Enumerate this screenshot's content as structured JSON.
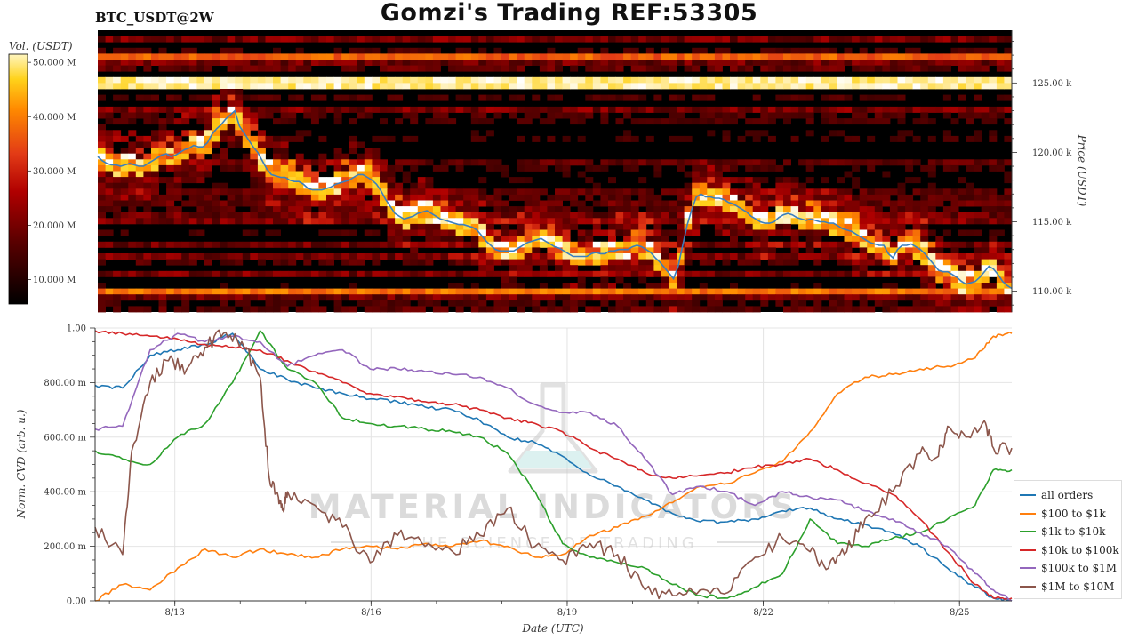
{
  "header": {
    "title": "Gomzi's Trading REF:53305",
    "symbol": "BTC_USDT@2W"
  },
  "watermark": {
    "line1": "MATERIAL INDICATORS",
    "line2": "THE SCIENCE OF TRADING"
  },
  "colorbar": {
    "label": "Vol. (USDT)",
    "ticks": [
      "50.000 M",
      "40.000 M",
      "30.000 M",
      "20.000 M",
      "10.000 M"
    ],
    "tick_values": [
      50,
      40,
      30,
      20,
      10
    ],
    "range": [
      5.5,
      51.5
    ]
  },
  "chart_data": [
    {
      "type": "heatmap",
      "title": "",
      "ylabel": "Price (USDT)",
      "ylim": [
        108500,
        128800
      ],
      "y_ticks": [
        110000,
        115000,
        120000,
        125000
      ],
      "y_tick_labels": [
        "110.00 k",
        "115.00 k",
        "120.00 k",
        "125.00 k"
      ],
      "colorscale": [
        "#000000",
        "#5a0000",
        "#b00000",
        "#e23a16",
        "#ff8a00",
        "#ffd21a",
        "#ffffff"
      ],
      "persistent_bands": [
        {
          "price": 125000,
          "intensity": 0.95
        },
        {
          "price": 127000,
          "intensity": 0.6
        },
        {
          "price": 109900,
          "intensity": 0.65
        }
      ],
      "series": [
        {
          "name": "price",
          "color": "#3a7fbf",
          "t": [
            0,
            0.5,
            1,
            1.5,
            2,
            2.5,
            3,
            3.5,
            4,
            4.5,
            5,
            5.5,
            6,
            6.5,
            7,
            7.5,
            8,
            8.5,
            9,
            9.5,
            10,
            10.5,
            11,
            11.5,
            12,
            12.5,
            13,
            13.5,
            14,
            14.5,
            15,
            15.5,
            16,
            16.5,
            17,
            17.5,
            18,
            18.5,
            19,
            19.5,
            20,
            20.5,
            21,
            21.5,
            22,
            22.5,
            23,
            23.5,
            24,
            24.5,
            25,
            25.5,
            26,
            26.5,
            27,
            27.5,
            28,
            28.5,
            29,
            29.5,
            30,
            30.5,
            31,
            31.5,
            32,
            32.5,
            33,
            33.5,
            34,
            34.5,
            35,
            35.5,
            36,
            36.5,
            37,
            37.5,
            38,
            38.5,
            39,
            39.5,
            40,
            40.5,
            41,
            41.5,
            42,
            42.5,
            43,
            43.5,
            44,
            44.5,
            45,
            45.5,
            46,
            46.5,
            47,
            47.5,
            48,
            48.5,
            49,
            49.5,
            50,
            50.5,
            51,
            51.5,
            52,
            52.5,
            53,
            53.5,
            54,
            54.5,
            55,
            55.5,
            56,
            56.5,
            57,
            57.5,
            58,
            58.5,
            59,
            59.5,
            60,
            60.5,
            61,
            61.5,
            62,
            62.5,
            63,
            63.5,
            64,
            64.5,
            65,
            65.5,
            66,
            66.5,
            67,
            67.5,
            68,
            68.5,
            69,
            69.5,
            70,
            70.5,
            71,
            71.5,
            72,
            72.5,
            73,
            73.5,
            74,
            74.5,
            75,
            75.5,
            76,
            76.5,
            77,
            77.5,
            78,
            78.5,
            79,
            79.5,
            80,
            80.5,
            81,
            81.5,
            82,
            82.5,
            83,
            83.5,
            84,
            84.5,
            85,
            85.5,
            86,
            86.5,
            87,
            87.5,
            88,
            88.5,
            89,
            89.5,
            90,
            90.5,
            91,
            91.5,
            92,
            92.5,
            93,
            93.5,
            94,
            94.5,
            95,
            95.5,
            96,
            96.5,
            97,
            97.5,
            98,
            98.5,
            99,
            99.5,
            100
          ],
          "values": [
            119700,
            119400,
            119200,
            119100,
            119100,
            119000,
            119100,
            119200,
            119100,
            119000,
            119000,
            119200,
            119400,
            119600,
            119800,
            119900,
            119700,
            119800,
            120000,
            120200,
            120300,
            120500,
            120400,
            120400,
            120700,
            121300,
            121700,
            122000,
            122400,
            122700,
            123000,
            121900,
            121400,
            120900,
            120400,
            120000,
            119400,
            118800,
            118400,
            118300,
            118200,
            118200,
            118000,
            117900,
            117900,
            117700,
            117400,
            117300,
            117300,
            117300,
            117400,
            117500,
            117700,
            117800,
            117900,
            118000,
            118200,
            118400,
            118400,
            118200,
            118000,
            117700,
            117200,
            116600,
            116100,
            115600,
            115400,
            115200,
            115300,
            115400,
            115600,
            115700,
            115800,
            115600,
            115400,
            115200,
            115100,
            115000,
            114900,
            114800,
            114800,
            114700,
            114600,
            114400,
            114000,
            113600,
            113300,
            113000,
            112900,
            112900,
            112900,
            112900,
            113100,
            113300,
            113500,
            113600,
            113700,
            113800,
            113600,
            113400,
            113200,
            113100,
            112900,
            112700,
            112500,
            112500,
            112500,
            112500,
            112700,
            112800,
            112700,
            112700,
            112900,
            112900,
            113000,
            113000,
            113000,
            113200,
            113300,
            113200,
            113000,
            112800,
            112400,
            112100,
            111700,
            111300,
            110900,
            111800,
            113300,
            114800,
            115900,
            116800,
            117000,
            116800,
            116800,
            116700,
            116700,
            116600,
            116400,
            116300,
            116100,
            115900,
            115700,
            115400,
            115200,
            115000,
            114900,
            114900,
            115000,
            115300,
            115500,
            115600,
            115500,
            115300,
            115200,
            115100,
            115200,
            115100,
            115000,
            115000,
            114900,
            114900,
            114700,
            114500,
            114400,
            114300,
            114100,
            113900,
            113700,
            113500,
            113400,
            113300,
            113300,
            112700,
            112400,
            113000,
            113300,
            113300,
            113400,
            113200,
            113000,
            112700,
            112300,
            111900,
            111500,
            111400,
            111400,
            111200,
            111000,
            110700,
            110500,
            110600,
            110700,
            111000,
            111400,
            111800,
            111600,
            111200,
            110700,
            110400,
            110200
          ]
        }
      ]
    },
    {
      "type": "line",
      "title": "",
      "xlabel": "Date (UTC)",
      "ylabel": "Norm. CVD (arb. u.)",
      "ylim": [
        0,
        1
      ],
      "xlim": [
        0,
        100
      ],
      "x_ticks": [
        8.7,
        30.1,
        51.5,
        72.9,
        94.3
      ],
      "x_tick_labels": [
        "8/13",
        "8/16",
        "8/19",
        "8/22",
        "8/25"
      ],
      "y_ticks": [
        0,
        0.2,
        0.4,
        0.6,
        0.8,
        1.0
      ],
      "y_tick_labels": [
        "0.00",
        "200.00 m",
        "400.00 m",
        "600.00 m",
        "800.00 m",
        "1.00"
      ],
      "grid": true,
      "legend_position": "bottom-right",
      "series": [
        {
          "name": "all orders",
          "color": "#1f77b4",
          "x": [
            0,
            3,
            6,
            9,
            12,
            15,
            18,
            21,
            24,
            27,
            30,
            33,
            36,
            39,
            42,
            45,
            48,
            51,
            54,
            57,
            60,
            63,
            66,
            69,
            72,
            75,
            78,
            81,
            84,
            87,
            90,
            93,
            96,
            98,
            100
          ],
          "values": [
            0.79,
            0.78,
            0.9,
            0.92,
            0.94,
            0.98,
            0.85,
            0.81,
            0.78,
            0.76,
            0.74,
            0.73,
            0.71,
            0.7,
            0.66,
            0.6,
            0.58,
            0.53,
            0.46,
            0.42,
            0.37,
            0.32,
            0.29,
            0.29,
            0.3,
            0.33,
            0.34,
            0.3,
            0.28,
            0.25,
            0.2,
            0.12,
            0.05,
            0.01,
            0.0
          ]
        },
        {
          "name": "$100 to $1k",
          "color": "#ff7f0e",
          "x": [
            0,
            3,
            6,
            9,
            12,
            15,
            18,
            21,
            24,
            27,
            30,
            33,
            36,
            39,
            42,
            45,
            48,
            51,
            54,
            57,
            60,
            63,
            66,
            69,
            72,
            75,
            78,
            81,
            84,
            87,
            90,
            93,
            96,
            98,
            100
          ],
          "values": [
            0.0,
            0.06,
            0.04,
            0.12,
            0.19,
            0.16,
            0.19,
            0.17,
            0.16,
            0.19,
            0.2,
            0.19,
            0.21,
            0.2,
            0.22,
            0.2,
            0.16,
            0.17,
            0.24,
            0.27,
            0.31,
            0.36,
            0.42,
            0.43,
            0.47,
            0.51,
            0.62,
            0.76,
            0.82,
            0.83,
            0.85,
            0.86,
            0.89,
            0.97,
            0.98
          ]
        },
        {
          "name": "$1k to $10k",
          "color": "#2ca02c",
          "x": [
            0,
            3,
            6,
            9,
            12,
            15,
            18,
            21,
            24,
            27,
            30,
            33,
            36,
            39,
            42,
            45,
            48,
            51,
            54,
            57,
            60,
            63,
            66,
            69,
            72,
            75,
            78,
            81,
            84,
            87,
            90,
            93,
            96,
            98,
            100
          ],
          "values": [
            0.55,
            0.52,
            0.5,
            0.6,
            0.65,
            0.8,
            0.99,
            0.85,
            0.8,
            0.67,
            0.65,
            0.64,
            0.63,
            0.62,
            0.6,
            0.54,
            0.4,
            0.21,
            0.16,
            0.14,
            0.12,
            0.06,
            0.02,
            0.01,
            0.05,
            0.1,
            0.3,
            0.21,
            0.2,
            0.23,
            0.25,
            0.3,
            0.35,
            0.48,
            0.48
          ]
        },
        {
          "name": "$10k to $100k",
          "color": "#d62728",
          "x": [
            0,
            3,
            6,
            9,
            12,
            15,
            18,
            21,
            24,
            27,
            30,
            33,
            36,
            39,
            42,
            45,
            48,
            51,
            54,
            57,
            60,
            63,
            66,
            69,
            72,
            75,
            78,
            81,
            84,
            87,
            90,
            93,
            96,
            98,
            100
          ],
          "values": [
            0.99,
            0.98,
            0.97,
            0.96,
            0.94,
            0.93,
            0.92,
            0.88,
            0.84,
            0.8,
            0.76,
            0.75,
            0.73,
            0.72,
            0.7,
            0.67,
            0.65,
            0.62,
            0.56,
            0.52,
            0.47,
            0.45,
            0.46,
            0.47,
            0.49,
            0.5,
            0.52,
            0.48,
            0.43,
            0.39,
            0.3,
            0.18,
            0.06,
            0.01,
            0.01
          ]
        },
        {
          "name": "$100k to $1M",
          "color": "#9467bd",
          "x": [
            0,
            3,
            6,
            9,
            12,
            15,
            18,
            21,
            24,
            27,
            30,
            33,
            36,
            39,
            42,
            45,
            48,
            51,
            54,
            57,
            60,
            63,
            66,
            69,
            72,
            75,
            78,
            81,
            84,
            87,
            90,
            93,
            96,
            98,
            100
          ],
          "values": [
            0.63,
            0.64,
            0.92,
            0.98,
            0.95,
            0.97,
            0.95,
            0.86,
            0.9,
            0.92,
            0.85,
            0.85,
            0.84,
            0.83,
            0.82,
            0.78,
            0.72,
            0.69,
            0.69,
            0.64,
            0.52,
            0.39,
            0.42,
            0.4,
            0.35,
            0.4,
            0.38,
            0.37,
            0.33,
            0.3,
            0.25,
            0.2,
            0.1,
            0.04,
            0.0
          ]
        },
        {
          "name": "$1M to $10M",
          "color": "#8c564b",
          "x": [
            0,
            3,
            4,
            6,
            8,
            10,
            12,
            14,
            16,
            18,
            19,
            20,
            20.5,
            21,
            24,
            27,
            30,
            33,
            36,
            39,
            42,
            45,
            48,
            51,
            54,
            57,
            60,
            63,
            66,
            69,
            72,
            75,
            78,
            80,
            82,
            84,
            87,
            90,
            92,
            93,
            95,
            97,
            98,
            100
          ],
          "values": [
            0.27,
            0.17,
            0.55,
            0.8,
            0.88,
            0.85,
            0.93,
            0.98,
            0.95,
            0.82,
            0.45,
            0.38,
            0.34,
            0.4,
            0.35,
            0.27,
            0.14,
            0.24,
            0.2,
            0.18,
            0.24,
            0.34,
            0.2,
            0.15,
            0.21,
            0.17,
            0.04,
            0.02,
            0.04,
            0.03,
            0.16,
            0.23,
            0.18,
            0.12,
            0.18,
            0.3,
            0.4,
            0.54,
            0.53,
            0.64,
            0.6,
            0.66,
            0.56,
            0.56
          ]
        }
      ]
    }
  ]
}
